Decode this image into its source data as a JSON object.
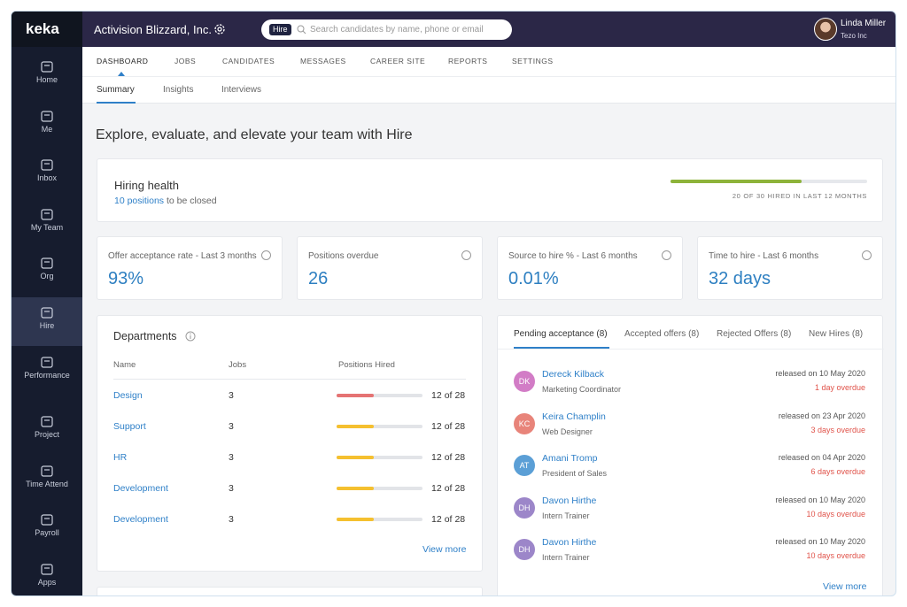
{
  "brand": "keka",
  "topbar": {
    "company": "Activision Blizzard, Inc.",
    "search_badge": "Hire",
    "search_placeholder": "Search candidates by name, phone or email",
    "user_name": "Linda Miller",
    "user_org": "Tezo Inc"
  },
  "sidebar": {
    "items": [
      "Home",
      "Me",
      "Inbox",
      "My Team",
      "Org",
      "Hire",
      "Performance",
      "Project",
      "Time Attend",
      "Payroll",
      "Apps"
    ],
    "active": 5
  },
  "nav": {
    "tabs": [
      "DASHBOARD",
      "JOBS",
      "CANDIDATES",
      "MESSAGES",
      "CAREER SITE",
      "REPORTS",
      "SETTINGS"
    ],
    "active": 0
  },
  "subnav": {
    "tabs": [
      "Summary",
      "Insights",
      "Interviews"
    ],
    "active": 0
  },
  "heading": "Explore, evaluate, and elevate your team with Hire",
  "hiring_health": {
    "title": "Hiring health",
    "positions_link": "10 positions",
    "positions_suffix": "to be closed",
    "progress": {
      "hired": 20,
      "of": "OF",
      "total": 30,
      "caption": "HIRED IN LAST 12 MONTHS"
    }
  },
  "metrics": [
    {
      "label": "Offer acceptance rate - Last 3 months",
      "value": "93%"
    },
    {
      "label": "Positions overdue",
      "value": "26"
    },
    {
      "label": "Source to hire % - Last 6 months",
      "value": "0.01%"
    },
    {
      "label": "Time to hire - Last 6 months",
      "value": "32 days"
    }
  ],
  "departments": {
    "title": "Departments",
    "columns": [
      "Name",
      "Jobs",
      "Positions Hired"
    ],
    "of": "of",
    "rows": [
      {
        "name": "Design",
        "jobs": 3,
        "hired": 12,
        "total": 28,
        "bar_color": "#e57373"
      },
      {
        "name": "Support",
        "jobs": 3,
        "hired": 12,
        "total": 28,
        "bar_color": "#f5c02f"
      },
      {
        "name": "HR",
        "jobs": 3,
        "hired": 12,
        "total": 28,
        "bar_color": "#f5c02f"
      },
      {
        "name": "Development",
        "jobs": 3,
        "hired": 12,
        "total": 28,
        "bar_color": "#f5c02f"
      },
      {
        "name": "Development",
        "jobs": 3,
        "hired": 12,
        "total": 28,
        "bar_color": "#f5c02f"
      }
    ],
    "view_more": "View more"
  },
  "offers": {
    "tabs": [
      "Pending acceptance (8)",
      "Accepted offers (8)",
      "Rejected Offers (8)",
      "New Hires (8)"
    ],
    "active": 0,
    "rows": [
      {
        "initials": "DK",
        "name": "Dereck Kilback",
        "role": "Marketing Coordinator",
        "released": "released on 10 May 2020",
        "status": "1 day overdue",
        "color": "#d27cc6"
      },
      {
        "initials": "KC",
        "name": "Keira Champlin",
        "role": "Web Designer",
        "released": "released on 23 Apr 2020",
        "status": "3 days overdue",
        "color": "#e8847a"
      },
      {
        "initials": "AT",
        "name": "Amani Tromp",
        "role": "President of Sales",
        "released": "released on 04 Apr 2020",
        "status": "6 days overdue",
        "color": "#5b9fd6"
      },
      {
        "initials": "DH",
        "name": "Davon Hirthe",
        "role": "Intern Trainer",
        "released": "released on 10 May 2020",
        "status": "10 days overdue",
        "color": "#9c86c9"
      },
      {
        "initials": "DH",
        "name": "Davon Hirthe",
        "role": "Intern Trainer",
        "released": "released on 10 May 2020",
        "status": "10 days overdue",
        "color": "#9c86c9"
      }
    ],
    "view_more": "View more"
  }
}
